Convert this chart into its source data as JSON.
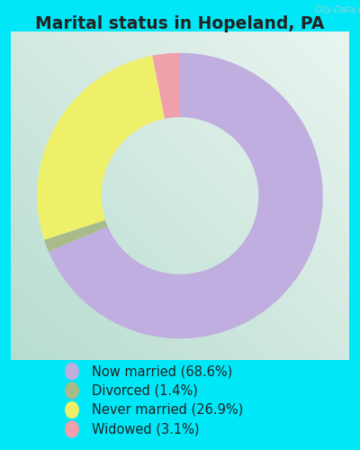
{
  "title": "Marital status in Hopeland, PA",
  "slices": [
    68.6,
    1.4,
    26.9,
    3.1
  ],
  "labels": [
    "Now married (68.6%)",
    "Divorced (1.4%)",
    "Never married (26.9%)",
    "Widowed (3.1%)"
  ],
  "colors": [
    "#c0aee0",
    "#a8bb8a",
    "#eef06a",
    "#f0a0aa"
  ],
  "legend_colors": [
    "#c0aee0",
    "#a8bb8a",
    "#eef06a",
    "#f0a0aa"
  ],
  "bg_color_outer": "#00e8f8",
  "title_fontsize": 13.5,
  "legend_fontsize": 10.5,
  "watermark": "City-Data.com",
  "startangle": 90,
  "donut_width": 0.45
}
